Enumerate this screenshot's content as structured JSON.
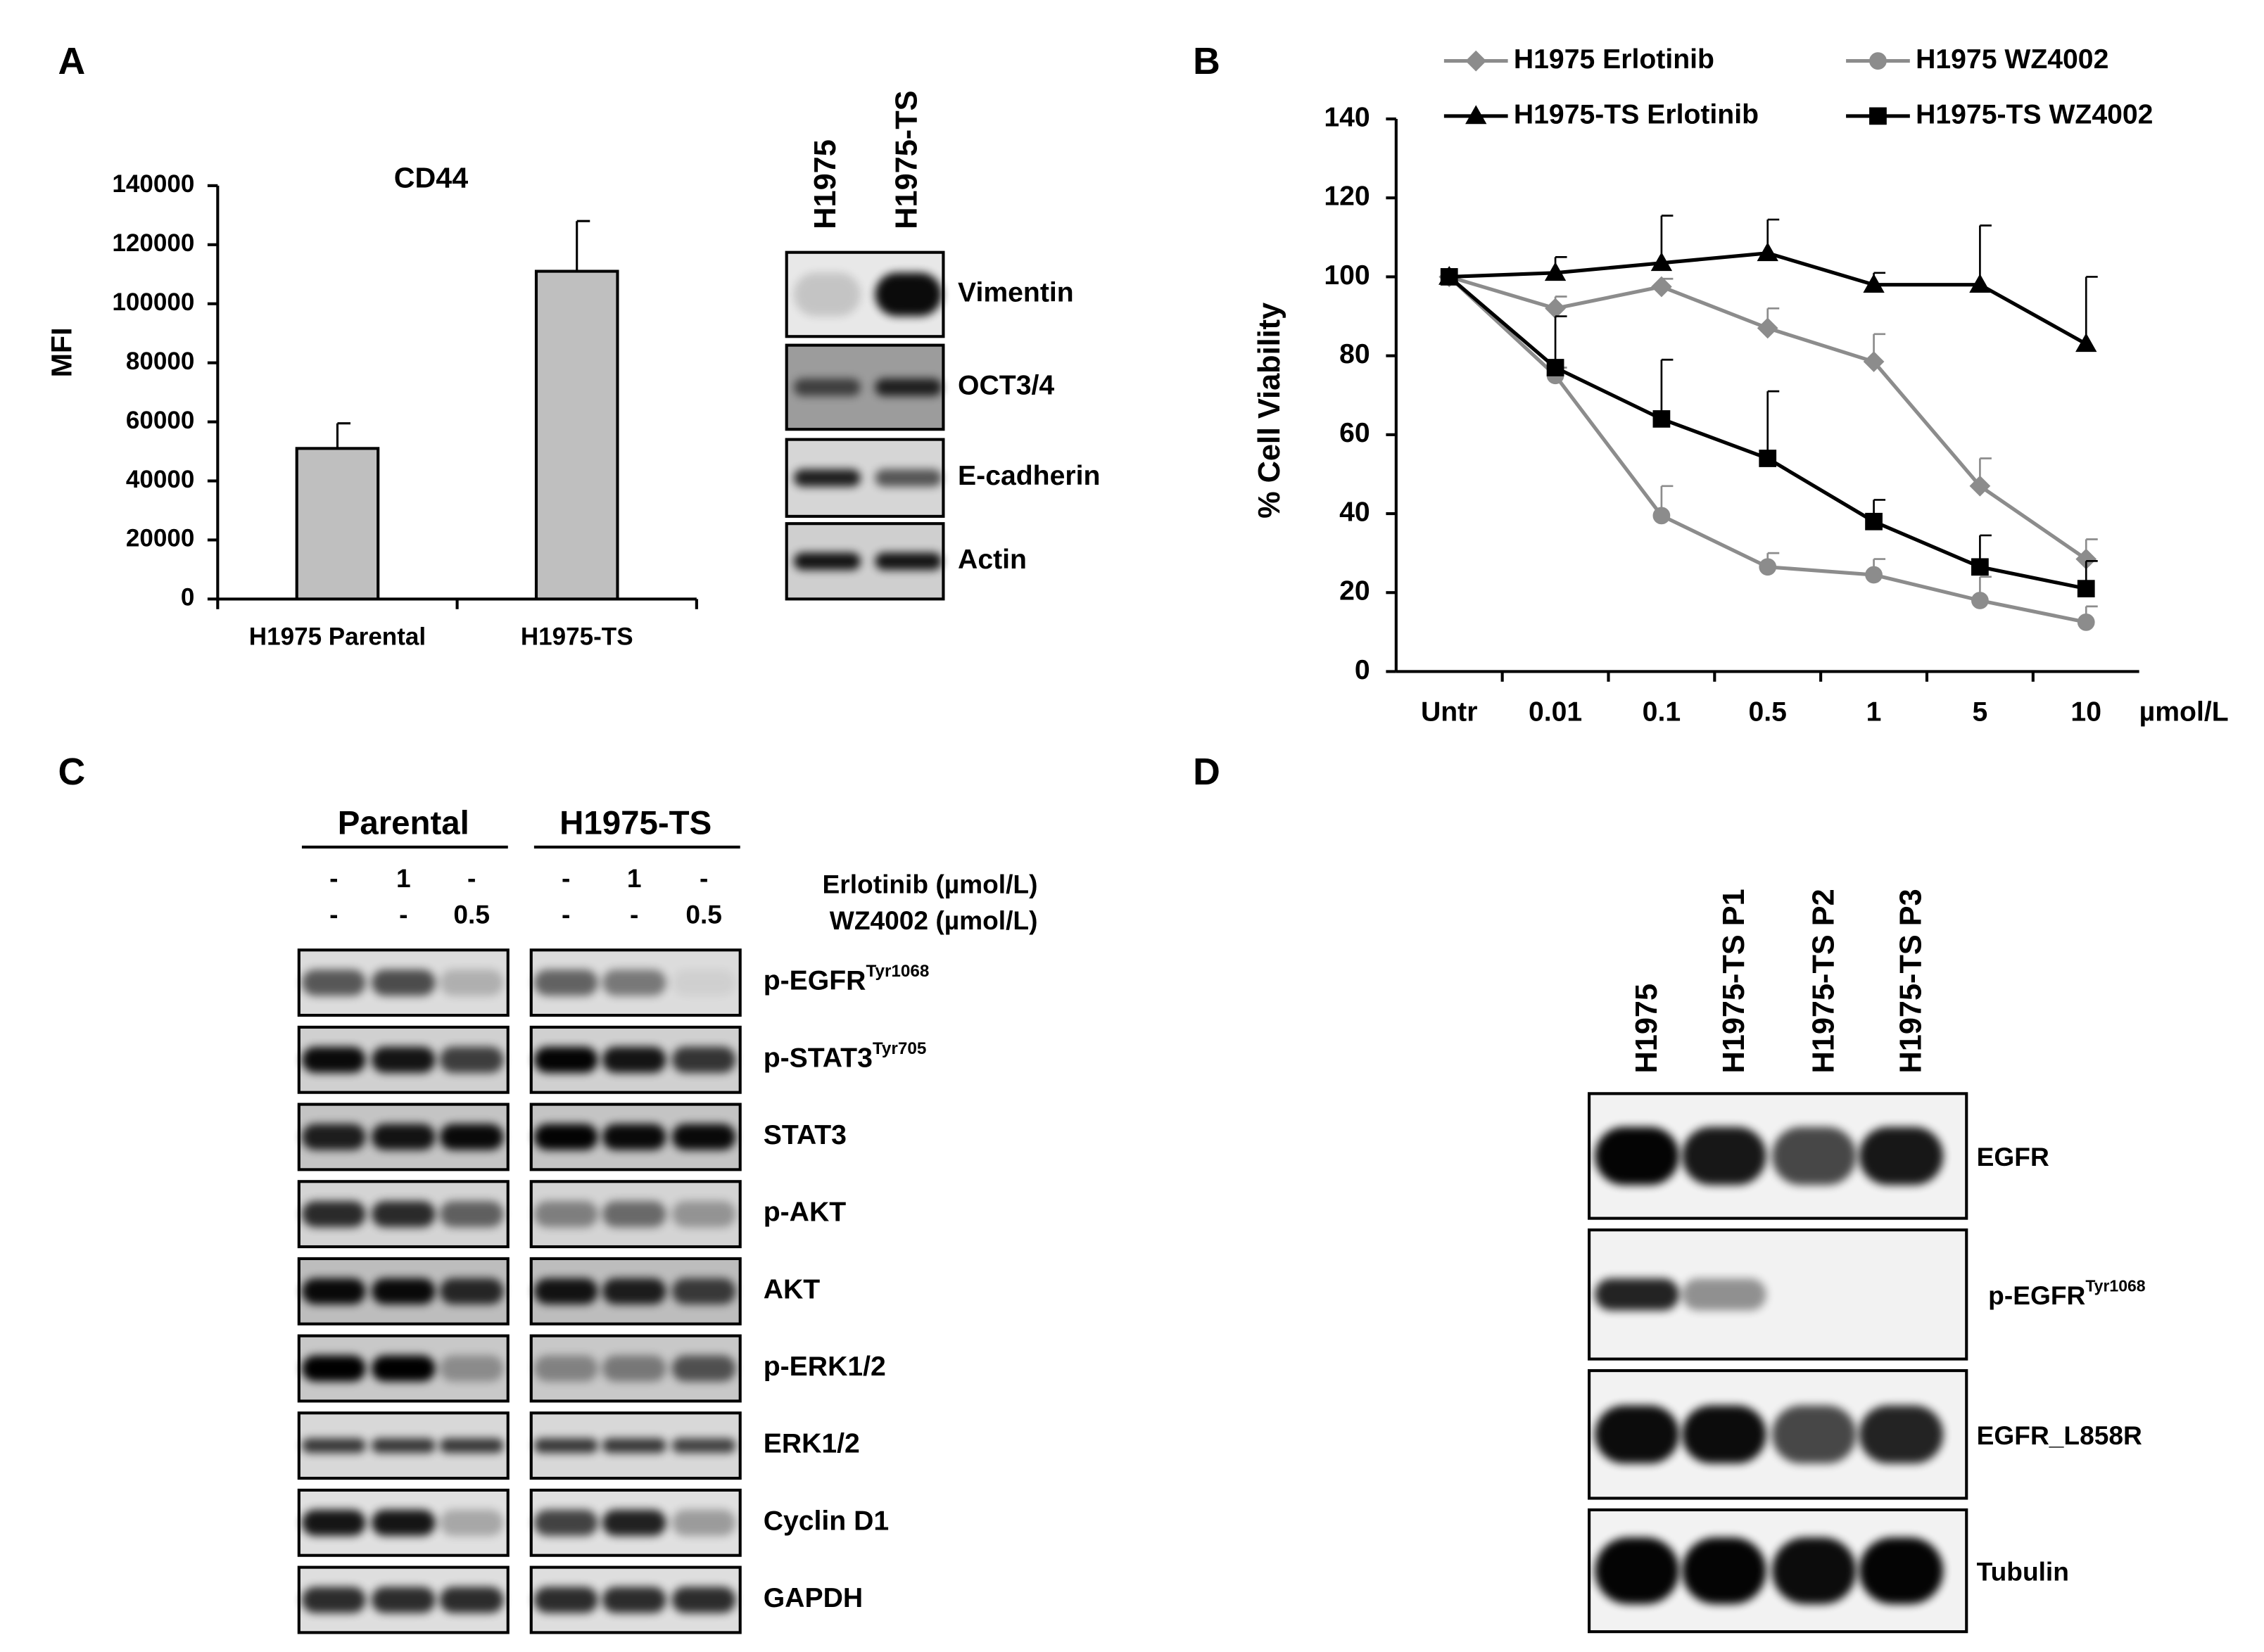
{
  "panel_labels": [
    "A",
    "B",
    "C",
    "D"
  ],
  "chart_data": [
    {
      "type": "bar",
      "title": "CD44",
      "y_label": "MFI",
      "categories": [
        "H1975 Parental",
        "H1975-TS"
      ],
      "values": [
        51000,
        111000
      ],
      "errors": [
        8500,
        17000
      ],
      "color": "#bfbfbf",
      "ylim": [
        0,
        140000
      ],
      "yticks": [
        0,
        20000,
        40000,
        60000,
        80000,
        100000,
        120000,
        140000
      ]
    },
    {
      "type": "line",
      "y_label": "% Cell Viability",
      "x_label": "µmol/L",
      "categories": [
        "Untr",
        "0.01",
        "0.1",
        "0.5",
        "1",
        "5",
        "10"
      ],
      "series": [
        {
          "name": "H1975 Erlotinib",
          "color": "#8c8c8c",
          "marker": "diamond",
          "values": [
            100,
            92,
            97.5,
            87,
            78.5,
            47,
            28.5
          ],
          "errors": [
            0,
            3,
            2,
            5,
            7,
            7,
            5
          ]
        },
        {
          "name": "H1975 WZ4002",
          "color": "#8c8c8c",
          "marker": "circle",
          "values": [
            100,
            75,
            39.5,
            26.5,
            24.5,
            18,
            12.5
          ],
          "errors": [
            0,
            2,
            7.5,
            3.5,
            4,
            6,
            4
          ]
        },
        {
          "name": "H1975-TS Erlotinib",
          "color": "#000000",
          "marker": "triangle",
          "values": [
            100,
            101,
            103.5,
            106,
            98,
            98,
            83
          ],
          "errors": [
            0,
            4,
            12,
            8.5,
            3,
            15,
            17
          ]
        },
        {
          "name": "H1975-TS WZ4002",
          "color": "#000000",
          "marker": "square",
          "values": [
            100,
            77,
            64,
            54,
            38,
            26.5,
            21
          ],
          "errors": [
            0,
            13,
            15,
            17,
            5.5,
            8,
            7
          ]
        }
      ],
      "ylim": [
        0,
        140
      ],
      "yticks": [
        0,
        20,
        40,
        60,
        80,
        100,
        120,
        140
      ]
    }
  ],
  "blots": {
    "a": {
      "columns": [
        "H1975",
        "H1975-TS"
      ],
      "rows": [
        {
          "label": "Vimentin"
        },
        {
          "label": "OCT3/4"
        },
        {
          "label": "E-cadherin"
        },
        {
          "label": "Actin"
        }
      ]
    },
    "c": {
      "groups": [
        "Parental",
        "H1975-TS"
      ],
      "treatments": [
        {
          "label": "Erlotinib (µmol/L)",
          "lanes": [
            "-",
            "1",
            "-",
            "-",
            "1",
            "-"
          ]
        },
        {
          "label": "WZ4002 (µmol/L)",
          "lanes": [
            "-",
            "-",
            "0.5",
            "-",
            "-",
            "0.5"
          ]
        }
      ],
      "rows": [
        {
          "label": "p-EGFR",
          "superscript": "Tyr1068"
        },
        {
          "label": "p-STAT3",
          "superscript": "Tyr705"
        },
        {
          "label": "STAT3"
        },
        {
          "label": "p-AKT"
        },
        {
          "label": "AKT"
        },
        {
          "label": "p-ERK1/2"
        },
        {
          "label": "ERK1/2"
        },
        {
          "label": "Cyclin D1"
        },
        {
          "label": "GAPDH"
        }
      ]
    },
    "d": {
      "columns": [
        "H1975",
        "H1975-TS  P1",
        "H1975-TS  P2",
        "H1975-TS  P3"
      ],
      "rows": [
        {
          "label": "EGFR"
        },
        {
          "label": "p-EGFR",
          "superscript": "Tyr1068"
        },
        {
          "label": "EGFR_L858R"
        },
        {
          "label": "Tubulin"
        }
      ]
    }
  }
}
